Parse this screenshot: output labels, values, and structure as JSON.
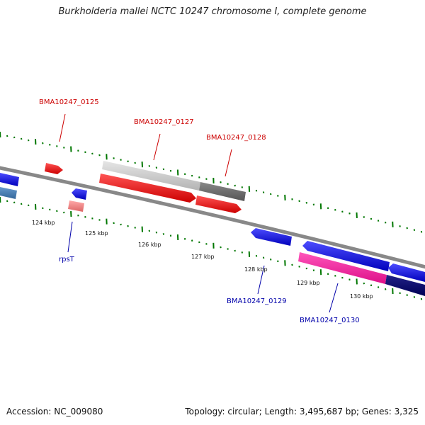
{
  "title": "Burkholderia mallei NCTC 10247 chromosome I, complete genome",
  "footer": {
    "accession": "Accession: NC_009080",
    "topology": "Topology: circular; Length: 3,495,687 bp; Genes: 3,325"
  },
  "scale_labels": [
    "124 kbp",
    "125 kbp",
    "126 kbp",
    "127 kbp",
    "128 kbp",
    "129 kbp",
    "130 kbp"
  ],
  "gene_labels": {
    "forward": [
      "BMA10247_0125",
      "BMA10247_0127",
      "BMA10247_0128"
    ],
    "reverse": [
      "rpsT",
      "BMA10247_0129",
      "BMA10247_0130"
    ]
  },
  "colors": {
    "forward_label": "#cc0000",
    "reverse_label": "#0000aa",
    "forward_cds": "#ff0000",
    "reverse_cds": "#0000ee",
    "tick": "#007700",
    "backbone": "#888888"
  }
}
